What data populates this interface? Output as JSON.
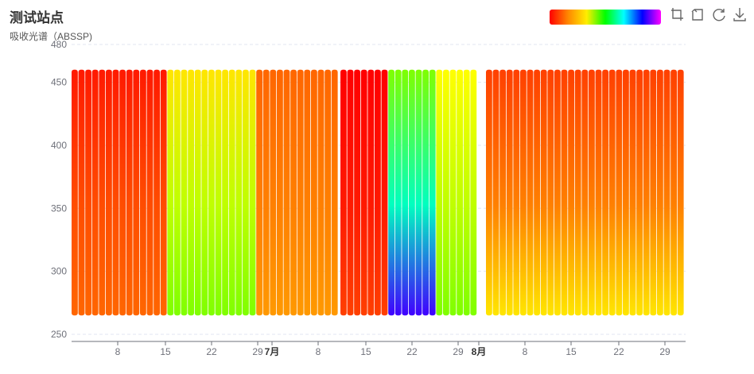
{
  "title": "测试站点",
  "subtitle": "吸收光谱（ABSSP)",
  "toolbox": {
    "icons": [
      "zoom-icon",
      "zoom-reset-icon",
      "refresh-icon",
      "download-icon"
    ]
  },
  "chart_data": {
    "type": "heatmap",
    "title": "测试站点",
    "subtitle": "吸收光谱（ABSSP)",
    "ylim": [
      250,
      480
    ],
    "y_ticks": [
      250,
      300,
      350,
      400,
      450,
      480
    ],
    "y_range_of_data": [
      265,
      460
    ],
    "x_ticks": [
      {
        "label": "8",
        "bold": false
      },
      {
        "label": "15",
        "bold": false
      },
      {
        "label": "22",
        "bold": false
      },
      {
        "label": "29",
        "bold": false
      },
      {
        "label": "7月",
        "bold": true
      },
      {
        "label": "8",
        "bold": false
      },
      {
        "label": "15",
        "bold": false
      },
      {
        "label": "22",
        "bold": false
      },
      {
        "label": "29",
        "bold": false
      },
      {
        "label": "8月",
        "bold": true
      },
      {
        "label": "8",
        "bold": false
      },
      {
        "label": "15",
        "bold": false
      },
      {
        "label": "22",
        "bold": false
      },
      {
        "label": "29",
        "bold": false
      }
    ],
    "grid": true,
    "legend": "top-right gradient",
    "color_scale": [
      "#ff0000",
      "#ff8800",
      "#ffee00",
      "#00ff00",
      "#00ffff",
      "#0000ff",
      "#ff00ff"
    ],
    "hue_stops_by_segment": [
      {
        "name": "june early",
        "top": 0.02,
        "mid": 0.06,
        "bottom": 0.08
      },
      {
        "name": "june mid",
        "top": 0.18,
        "mid": 0.25,
        "bottom": 0.3
      },
      {
        "name": "june late",
        "top": 0.08,
        "mid": 0.1,
        "bottom": 0.12
      },
      {
        "name": "july early",
        "top": 0.0,
        "mid": 0.02,
        "bottom": 0.05
      },
      {
        "name": "july mid",
        "top": 0.3,
        "mid": 0.55,
        "bottom": 0.85
      },
      {
        "name": "july late",
        "top": 0.2,
        "mid": 0.25,
        "bottom": 0.3
      },
      {
        "name": "august",
        "top": 0.05,
        "mid": 0.1,
        "bottom": 0.18
      }
    ]
  }
}
